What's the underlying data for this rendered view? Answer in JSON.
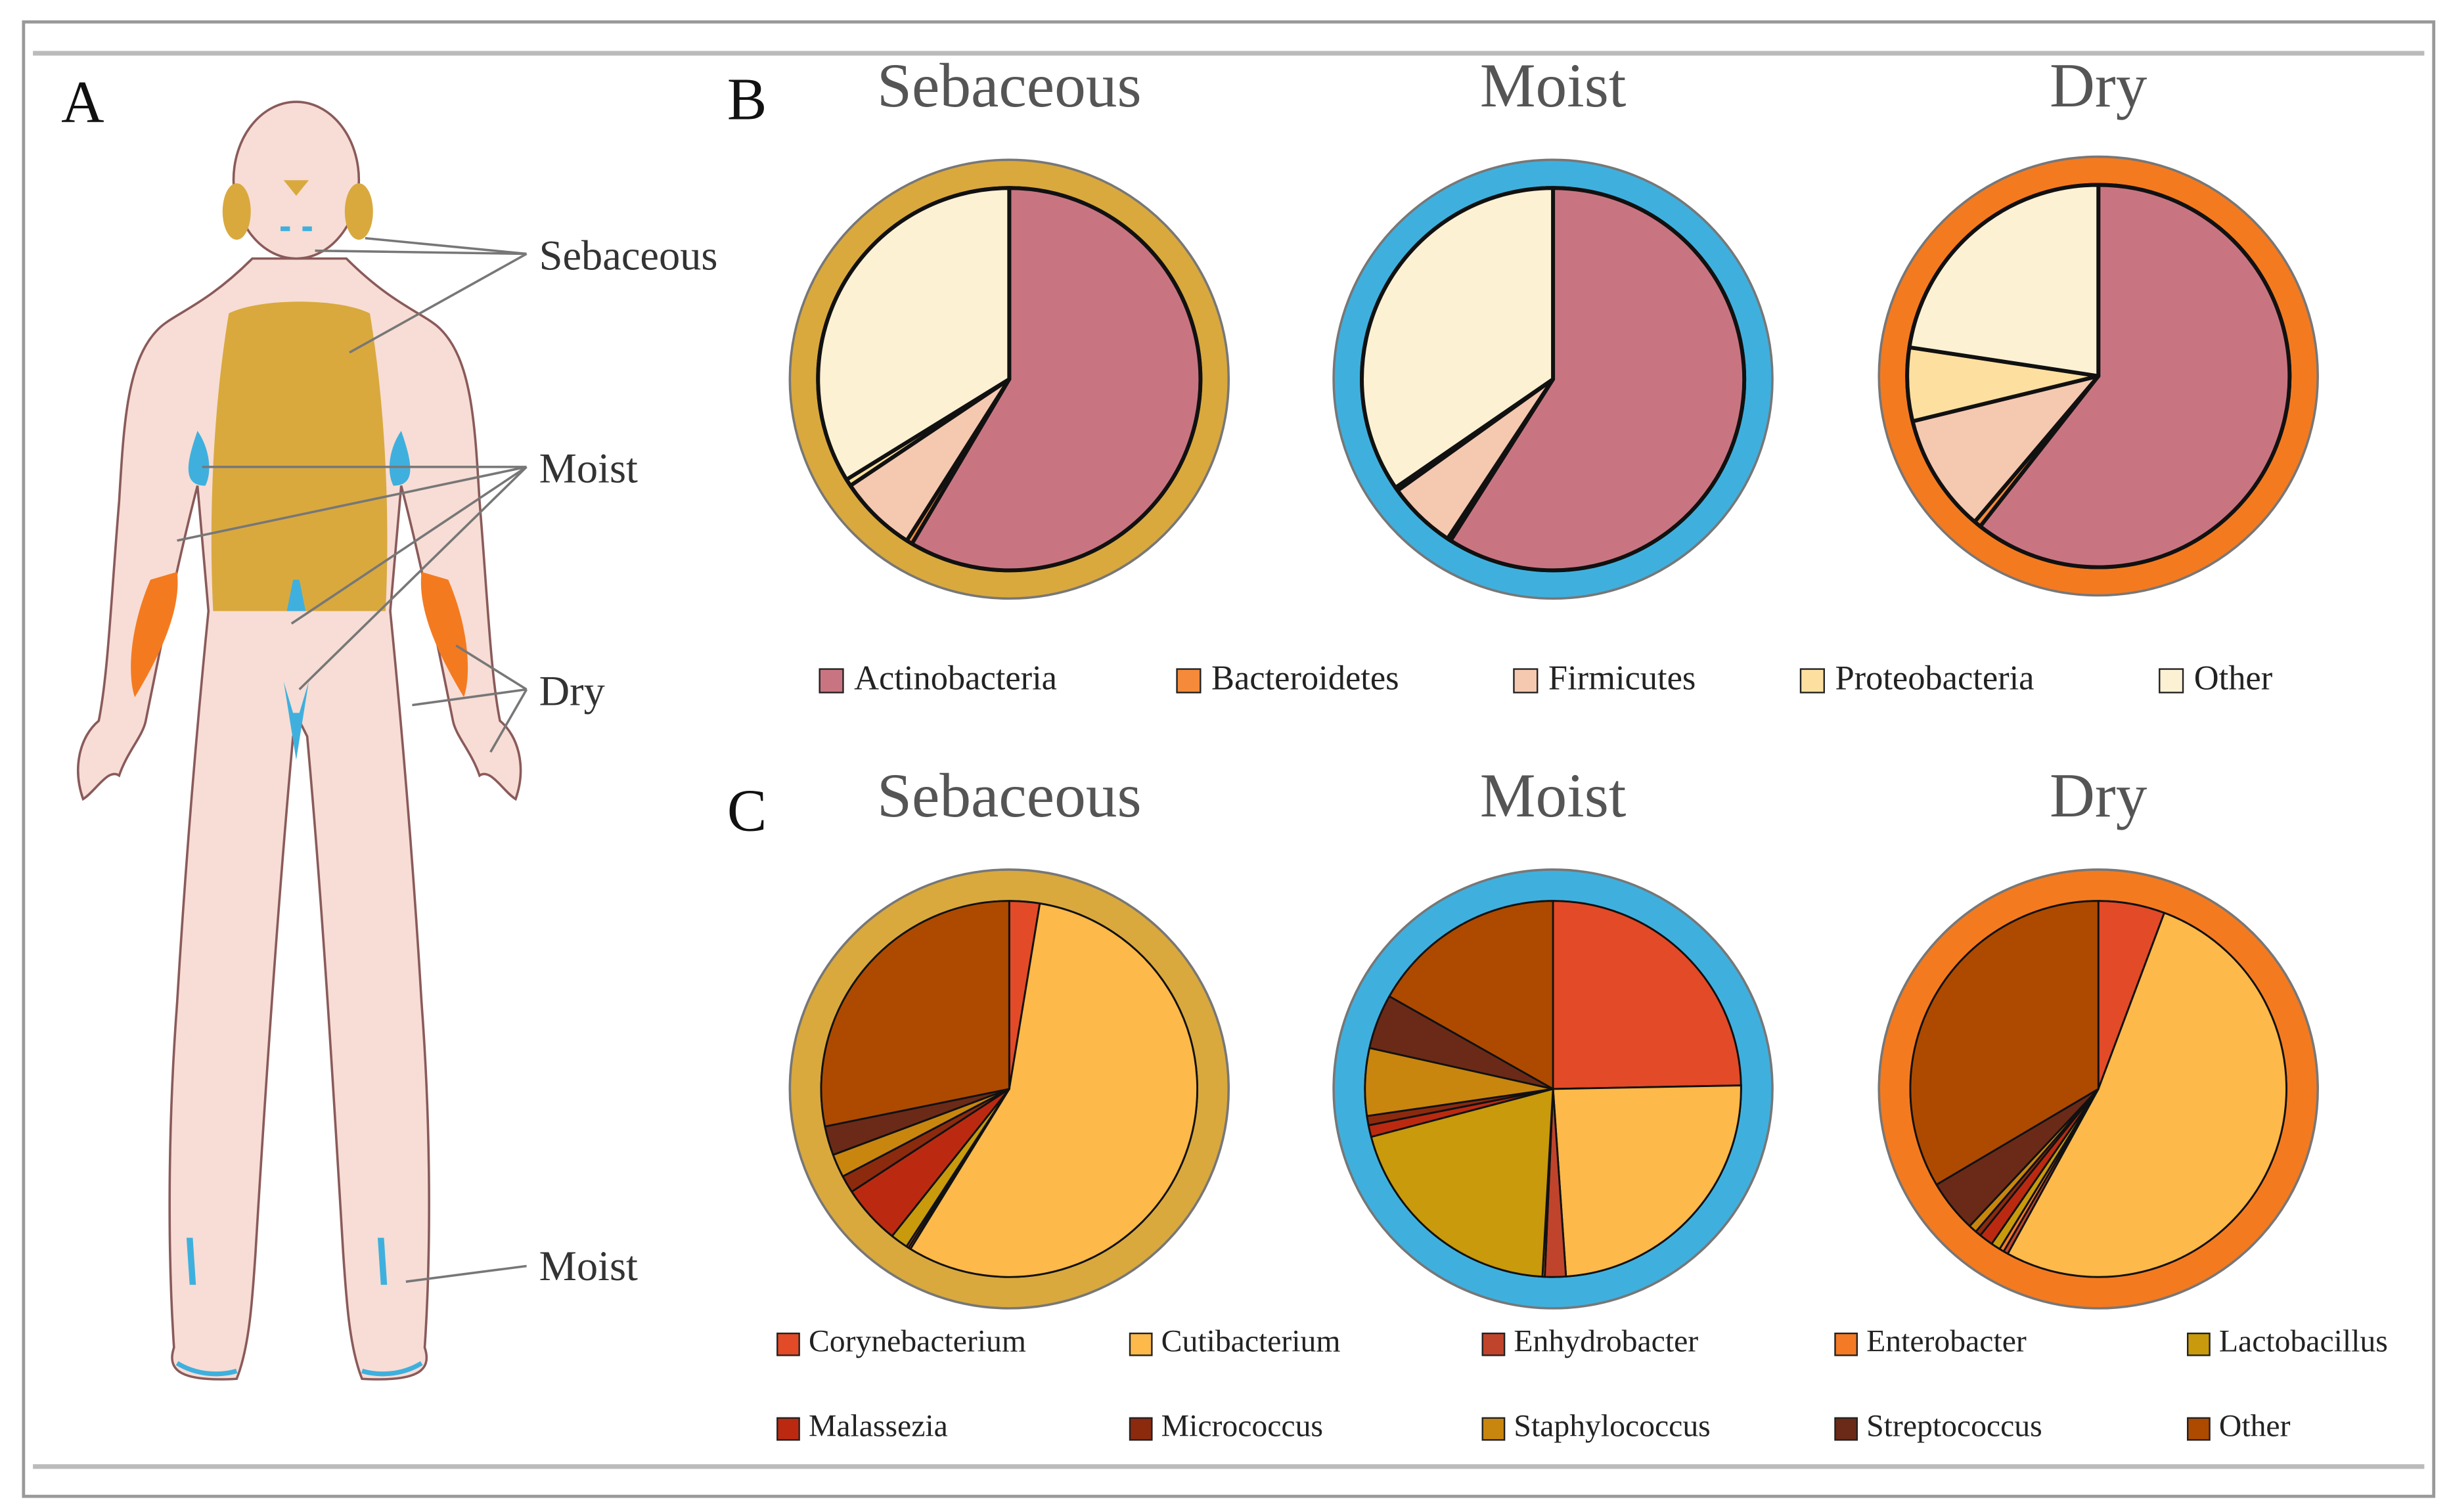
{
  "figure": {
    "panels": [
      "A",
      "B",
      "C"
    ],
    "body_labels": [
      "Sebaceous",
      "Moist",
      "Dry",
      "Moist"
    ]
  },
  "chart_data": [
    {
      "type": "pie",
      "title": "Sebaceous",
      "ring_color": "#d9a93e",
      "categories": [
        "Actinobacteria",
        "Bacteroidetes",
        "Firmicutes",
        "Proteobacteria",
        "Other"
      ],
      "values": [
        58.5,
        0.5,
        6.6,
        0.6,
        33.8
      ],
      "colors": [
        "#c97581",
        "#f58a3a",
        "#f5c8b0",
        "#fde0a0",
        "#fdf1d4"
      ]
    },
    {
      "type": "pie",
      "title": "Moist",
      "ring_color": "#3fb0de",
      "categories": [
        "Actinobacteria",
        "Bacteroidetes",
        "Firmicutes",
        "Proteobacteria",
        "Other"
      ],
      "values": [
        59,
        0.3,
        5.8,
        0.3,
        34.6
      ],
      "colors": [
        "#c97581",
        "#f58a3a",
        "#f5c8b0",
        "#fde0a0",
        "#fdf1d4"
      ]
    },
    {
      "type": "pie",
      "title": "Dry",
      "ring_color": "#f47a20",
      "categories": [
        "Actinobacteria",
        "Bacteroidetes",
        "Firmicutes",
        "Proteobacteria",
        "Other"
      ],
      "values": [
        60.6,
        0.6,
        10,
        6.2,
        22.6
      ],
      "colors": [
        "#c97581",
        "#f58a3a",
        "#f5c8b0",
        "#fde0a0",
        "#fdf1d4"
      ]
    },
    {
      "type": "pie",
      "title": "Sebaceous",
      "ring_color": "#d9a93e",
      "categories": [
        "Corynebacterium",
        "Cutibacterium",
        "Enhydrobacter",
        "Enterobacter",
        "Lactobacillus",
        "Malassezia",
        "Micrococcus",
        "Staphylococcus",
        "Streptococcus",
        "Other"
      ],
      "values": [
        2.6,
        56.2,
        0.2,
        0.2,
        1.5,
        5.1,
        1.5,
        2,
        2.5,
        28.2
      ],
      "colors": [
        "#e34a27",
        "#fdb94a",
        "#c0442b",
        "#f47a25",
        "#c89a0c",
        "#bb2a10",
        "#8c2a0e",
        "#c8860f",
        "#6b2a17",
        "#ad4a00"
      ]
    },
    {
      "type": "pie",
      "title": "Moist",
      "ring_color": "#3fb0de",
      "categories": [
        "Corynebacterium",
        "Cutibacterium",
        "Enhydrobacter",
        "Enterobacter",
        "Lactobacillus",
        "Malassezia",
        "Micrococcus",
        "Staphylococcus",
        "Streptococcus",
        "Other"
      ],
      "values": [
        24.7,
        24.2,
        1.8,
        0.2,
        20,
        1,
        0.8,
        5.8,
        4.7,
        16.8
      ],
      "colors": [
        "#e34a27",
        "#fdb94a",
        "#c0442b",
        "#f47a25",
        "#c89a0c",
        "#bb2a10",
        "#8c2a0e",
        "#c8860f",
        "#6b2a17",
        "#ad4a00"
      ]
    },
    {
      "type": "pie",
      "title": "Dry",
      "ring_color": "#f47a20",
      "categories": [
        "Corynebacterium",
        "Cutibacterium",
        "Enhydrobacter",
        "Enterobacter",
        "Lactobacillus",
        "Malassezia",
        "Micrococcus",
        "Staphylococcus",
        "Streptococcus",
        "Other"
      ],
      "values": [
        5.7,
        52.3,
        0.4,
        0.4,
        0.8,
        1.2,
        0.5,
        0.7,
        4.5,
        33.5
      ],
      "colors": [
        "#e34a27",
        "#fdb94a",
        "#c0442b",
        "#f47a25",
        "#c89a0c",
        "#bb2a10",
        "#8c2a0e",
        "#c8860f",
        "#6b2a17",
        "#ad4a00"
      ]
    }
  ]
}
